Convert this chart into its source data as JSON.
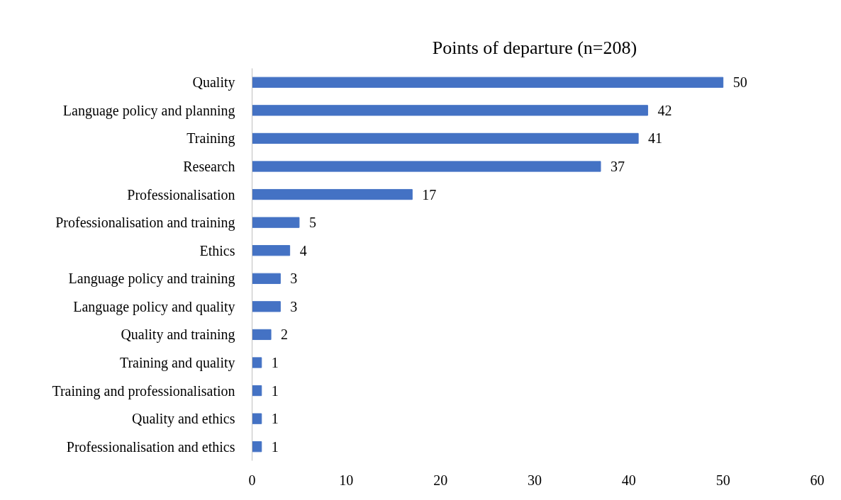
{
  "chart_data": {
    "type": "bar",
    "orientation": "horizontal",
    "title": "Points of departure (n=208)",
    "categories": [
      "Quality",
      "Language policy and planning",
      "Training",
      "Research",
      "Professionalisation",
      "Professionalisation and training",
      "Ethics",
      "Language policy and training",
      "Language policy and quality",
      "Quality and training",
      "Training and quality",
      "Training and professionalisation",
      "Quality and ethics",
      "Professionalisation and ethics"
    ],
    "values": [
      50,
      42,
      41,
      37,
      17,
      5,
      4,
      3,
      3,
      2,
      1,
      1,
      1,
      1
    ],
    "color": "#4472c4",
    "xlim": [
      0,
      60
    ],
    "xticks": [
      0,
      10,
      20,
      30,
      40,
      50,
      60
    ],
    "data_labels": true,
    "grid": false
  }
}
